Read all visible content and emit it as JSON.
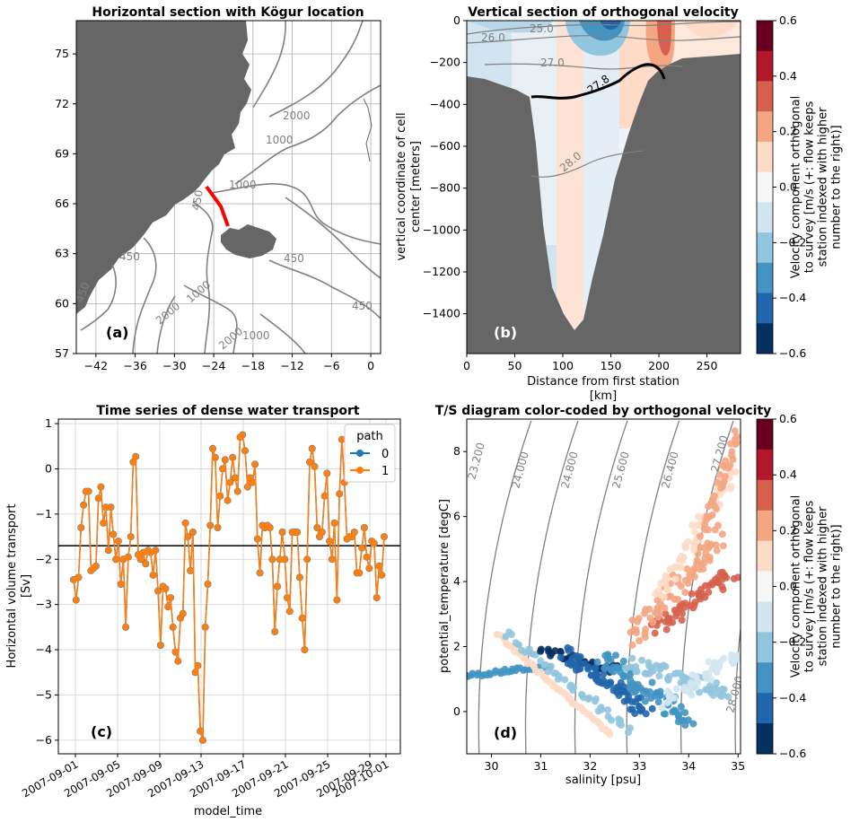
{
  "panels": {
    "a": {
      "title": "Horizontal section with Kögur location",
      "panel_label": "(a)",
      "xticks": [
        "−42",
        "−36",
        "−30",
        "−24",
        "−18",
        "−12",
        "−6",
        "0"
      ],
      "yticks": [
        "57",
        "60",
        "63",
        "66",
        "69",
        "72",
        "75"
      ],
      "contour_labels": [
        "2000",
        "1000",
        "1000",
        "450",
        "450",
        "450",
        "450",
        "1000",
        "2000",
        "1000",
        "450",
        "2000"
      ]
    },
    "b": {
      "title": "Vertical section of orthogonal velocity",
      "panel_label": "(b)",
      "xlabel": "Distance from first station\n[km]",
      "ylabel": "vertical coordinate of cell\ncenter [meters]",
      "xticks": [
        "0",
        "50",
        "100",
        "150",
        "200",
        "250"
      ],
      "yticks": [
        "0",
        "−200",
        "−400",
        "−600",
        "−800",
        "−1000",
        "−1200",
        "−1400"
      ],
      "isopycnal_labels": [
        "25.0",
        "26.0",
        "27.0",
        "27.8",
        "28.0"
      ]
    },
    "c": {
      "title": "Time series of dense water transport",
      "panel_label": "(c)",
      "xlabel": "model_time",
      "ylabel": "Horizontal volume transport\n[Sv]",
      "legend_title": "path",
      "legend_entries": [
        "0",
        "1"
      ],
      "xticks": [
        "2007-09-01",
        "2007-09-05",
        "2007-09-09",
        "2007-09-13",
        "2007-09-17",
        "2007-09-21",
        "2007-09-25",
        "2007-09-29",
        "2007-10-01"
      ],
      "yticks": [
        "1",
        "0",
        "−1",
        "−2",
        "−3",
        "−4",
        "−5",
        "−6"
      ]
    },
    "d": {
      "title": "T/S diagram color-coded by orthogonal velocity",
      "panel_label": "(d)",
      "xlabel": "salinity [psu]",
      "ylabel": "potential_temperature [degC]",
      "xticks": [
        "30",
        "31",
        "32",
        "33",
        "34",
        "35"
      ],
      "yticks": [
        "0",
        "2",
        "4",
        "6",
        "8"
      ],
      "density_labels": [
        "23.200",
        "24.000",
        "24.800",
        "25.600",
        "26.400",
        "27.200",
        "28.000"
      ]
    }
  },
  "colorbar": {
    "label": "Velocity component orthogonal\nto survey [m/s (+: flow keeps\nstation indexed with higher\nnumber to the right)]",
    "ticks": [
      "0.6",
      "0.4",
      "0.2",
      "0.0",
      "−0.2",
      "−0.4",
      "−0.6"
    ],
    "colors": [
      "#67001f",
      "#b2182b",
      "#d6604d",
      "#f4a582",
      "#fddbc7",
      "#f7f7f7",
      "#d1e5f0",
      "#92c5de",
      "#4393c3",
      "#2166ac",
      "#053061"
    ]
  },
  "colors": {
    "land": "#666666",
    "section_line": "#ff0000",
    "series0": "#1f77b4",
    "series1": "#ff7f0e",
    "contour": "#808080"
  },
  "chart_data": [
    {
      "type": "map",
      "title": "Horizontal section with Kögur location",
      "xlim": [
        -45,
        1.5
      ],
      "ylim": [
        57,
        77
      ],
      "contour_levels": [
        450,
        1000,
        2000
      ],
      "section_line": {
        "lon": [
          -26.5,
          -24.5,
          -23.5
        ],
        "lat": [
          68.8,
          67.5,
          65.5
        ]
      }
    },
    {
      "type": "heatmap",
      "title": "Vertical section of orthogonal velocity",
      "xlim": [
        0,
        285
      ],
      "ylim": [
        -1590,
        0
      ],
      "isopycnals": [
        25.0,
        26.0,
        27.0,
        27.8,
        28.0
      ],
      "colorbar_range": [
        -0.6,
        0.6
      ]
    },
    {
      "type": "line",
      "title": "Time series of dense water transport",
      "ylim": [
        -6.3,
        1.1
      ],
      "mean_line": -1.7,
      "series": [
        {
          "name": "0",
          "values": [
            -2.45,
            -2.9,
            -2.4,
            -1.3,
            -0.8,
            -0.5,
            -0.5,
            -2.25,
            -2.2,
            -2.15,
            -0.65,
            -0.4,
            -1.2,
            -0.85,
            -1.8,
            -0.85,
            -1.45,
            -2.0,
            -1.6,
            -2.55,
            -2.0,
            -3.5,
            -1.95,
            -1.5,
            0.15,
            0.27,
            -1.9,
            -2.0,
            -1.85,
            -2.1,
            -1.8,
            -1.85,
            -2.35,
            -1.8,
            -2.7,
            -3.9,
            -2.6,
            -2.65,
            -3.05,
            -2.85,
            -3.5,
            -4.05,
            -4.25,
            -3.3,
            -3.2,
            -1.2,
            -1.5,
            -2.25,
            -1.4,
            -4.5,
            -4.35,
            -5.8,
            -6.0,
            -3.5,
            -2.55,
            -1.25,
            0.45,
            0.25,
            -1.3,
            -0.6,
            0.0,
            0.2,
            -0.7,
            -0.3,
            0.25,
            -0.2,
            -0.5,
            0.7,
            0.75,
            0.4,
            -0.4,
            -0.2,
            -0.3,
            0.1,
            -1.55,
            -2.3,
            -1.25,
            -1.3,
            -1.25,
            -1.3,
            -2.0,
            -3.6,
            -2.6,
            -2.0,
            -1.4,
            -2.0,
            -2.85,
            -3.15,
            -1.4,
            -1.4,
            -1.4,
            -2.4,
            -3.3,
            -4.0,
            -2.0,
            0.15,
            0.45,
            0.05,
            -1.3,
            -1.5,
            -1.4,
            -0.6,
            -0.1,
            -1.6,
            -2.0,
            -1.2,
            -2.9,
            -0.55,
            0.65,
            -0.3,
            -1.55,
            -1.5,
            -1.5,
            -1.4,
            -2.3,
            -2.3,
            -1.75,
            -1.3,
            -1.95,
            -2.2,
            -1.6,
            -1.65,
            -2.85,
            -2.15,
            -2.35,
            -1.5
          ]
        },
        {
          "name": "1",
          "values": [
            -2.45,
            -2.9,
            -2.4,
            -1.3,
            -0.8,
            -0.5,
            -0.5,
            -2.25,
            -2.2,
            -2.15,
            -0.65,
            -0.4,
            -1.2,
            -0.85,
            -1.8,
            -0.85,
            -1.45,
            -2.0,
            -1.6,
            -2.55,
            -2.0,
            -3.5,
            -1.95,
            -1.5,
            0.15,
            0.27,
            -1.9,
            -2.0,
            -1.85,
            -2.1,
            -1.8,
            -1.85,
            -2.35,
            -1.8,
            -2.7,
            -3.9,
            -2.6,
            -2.65,
            -3.05,
            -2.85,
            -3.5,
            -4.05,
            -4.25,
            -3.3,
            -3.2,
            -1.2,
            -1.5,
            -2.25,
            -1.4,
            -4.5,
            -4.35,
            -5.8,
            -6.0,
            -3.5,
            -2.55,
            -1.25,
            0.45,
            0.25,
            -1.3,
            -0.6,
            0.0,
            0.2,
            -0.7,
            -0.3,
            0.25,
            -0.2,
            -0.5,
            0.7,
            0.75,
            0.4,
            -0.4,
            -0.2,
            -0.3,
            0.1,
            -1.55,
            -2.3,
            -1.25,
            -1.3,
            -1.25,
            -1.3,
            -2.0,
            -3.6,
            -2.6,
            -2.0,
            -1.4,
            -2.0,
            -2.85,
            -3.15,
            -1.4,
            -1.4,
            -1.4,
            -2.4,
            -3.3,
            -4.0,
            -2.0,
            0.15,
            0.45,
            0.05,
            -1.3,
            -1.5,
            -1.4,
            -0.6,
            -0.1,
            -1.6,
            -2.0,
            -1.2,
            -2.9,
            -0.55,
            0.65,
            -0.3,
            -1.55,
            -1.5,
            -1.5,
            -1.4,
            -2.3,
            -2.3,
            -1.75,
            -1.3,
            -1.95,
            -2.2,
            -1.6,
            -1.65,
            -2.85,
            -2.15,
            -2.35,
            -1.5
          ]
        }
      ]
    },
    {
      "type": "scatter",
      "title": "T/S diagram color-coded by orthogonal velocity",
      "xlim": [
        29.5,
        35.05
      ],
      "ylim": [
        -1.3,
        9.0
      ]
    }
  ]
}
